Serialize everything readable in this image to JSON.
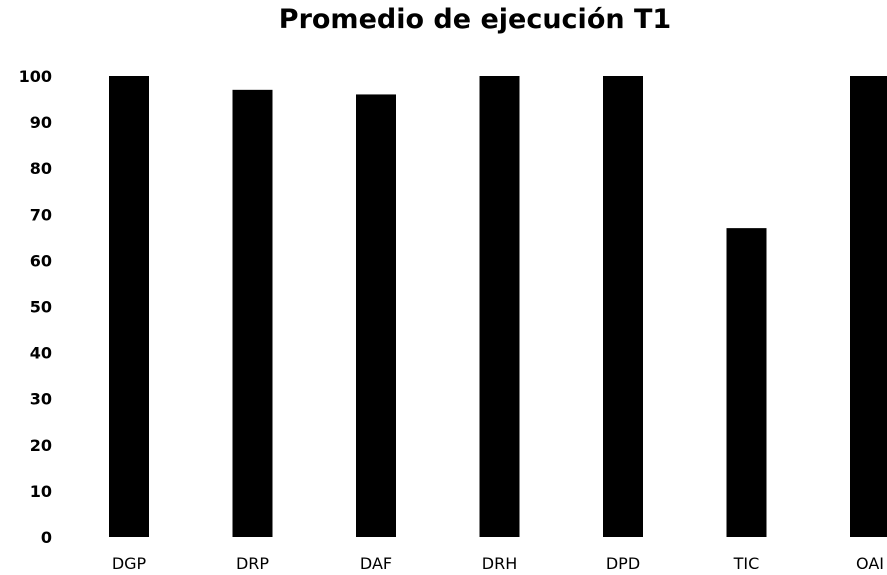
{
  "chart_data": {
    "type": "bar",
    "title": "Promedio de ejecución T1",
    "xlabel": "",
    "ylabel": "",
    "categories": [
      "DGP",
      "DRP",
      "DAF",
      "DRH",
      "DPD",
      "TIC",
      "OAI"
    ],
    "values": [
      100,
      97,
      96,
      100,
      100,
      67,
      100
    ],
    "ylim": [
      0,
      100
    ],
    "yticks": [
      0,
      10,
      20,
      30,
      40,
      50,
      60,
      70,
      80,
      90,
      100
    ],
    "grid": false,
    "legend": "none",
    "bar_color": "#000000"
  }
}
